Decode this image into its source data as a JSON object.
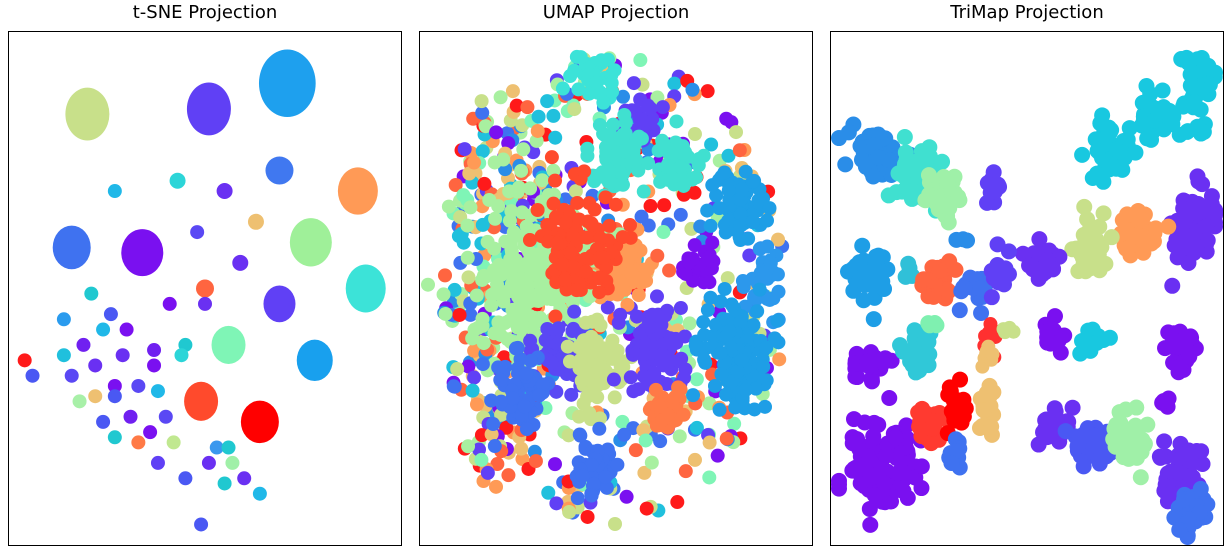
{
  "figure": {
    "background": "#ffffff"
  },
  "chart_data": [
    {
      "type": "scatter",
      "title": "t-SNE Projection",
      "grid": false,
      "axes_visible": false,
      "colormap": "rainbow",
      "points": [
        {
          "x": 0.2,
          "y": 0.16,
          "r": 22,
          "color": "#c8e08a",
          "w": 1.0,
          "h": 1.2
        },
        {
          "x": 0.51,
          "y": 0.15,
          "r": 22,
          "color": "#6040f5",
          "w": 1.0,
          "h": 1.2
        },
        {
          "x": 0.71,
          "y": 0.1,
          "r": 27,
          "color": "#1ea0ee",
          "w": 1.05,
          "h": 1.25
        },
        {
          "x": 0.27,
          "y": 0.31,
          "r": 7,
          "color": "#20b8e8"
        },
        {
          "x": 0.43,
          "y": 0.29,
          "r": 8,
          "color": "#2cd5d8"
        },
        {
          "x": 0.55,
          "y": 0.31,
          "r": 8,
          "color": "#6a30f2"
        },
        {
          "x": 0.69,
          "y": 0.27,
          "r": 14,
          "color": "#4078f0"
        },
        {
          "x": 0.89,
          "y": 0.31,
          "r": 20,
          "color": "#ff9a56",
          "w": 1.0,
          "h": 1.18
        },
        {
          "x": 0.16,
          "y": 0.42,
          "r": 19,
          "color": "#3f72f0",
          "w": 1.0,
          "h": 1.15
        },
        {
          "x": 0.34,
          "y": 0.43,
          "r": 21,
          "color": "#7a10f0",
          "w": 1.0,
          "h": 1.12
        },
        {
          "x": 0.48,
          "y": 0.39,
          "r": 7,
          "color": "#5a48f4"
        },
        {
          "x": 0.63,
          "y": 0.37,
          "r": 8,
          "color": "#eec071"
        },
        {
          "x": 0.77,
          "y": 0.41,
          "r": 21,
          "color": "#9ff099",
          "w": 1.0,
          "h": 1.15
        },
        {
          "x": 0.59,
          "y": 0.45,
          "r": 8,
          "color": "#6a30f2"
        },
        {
          "x": 0.5,
          "y": 0.5,
          "r": 9,
          "color": "#ff6540"
        },
        {
          "x": 0.91,
          "y": 0.5,
          "r": 20,
          "color": "#3ce3d8",
          "w": 1.0,
          "h": 1.2
        },
        {
          "x": 0.69,
          "y": 0.53,
          "r": 16,
          "color": "#6040f5",
          "w": 1.0,
          "h": 1.15
        },
        {
          "x": 0.41,
          "y": 0.53,
          "r": 7,
          "color": "#7a10f0"
        },
        {
          "x": 0.21,
          "y": 0.51,
          "r": 7,
          "color": "#20c8d0"
        },
        {
          "x": 0.14,
          "y": 0.56,
          "r": 7,
          "color": "#2a9bee"
        },
        {
          "x": 0.26,
          "y": 0.55,
          "r": 7,
          "color": "#4a58f3"
        },
        {
          "x": 0.24,
          "y": 0.58,
          "r": 7,
          "color": "#20b8e8"
        },
        {
          "x": 0.3,
          "y": 0.58,
          "r": 7,
          "color": "#7a10f0"
        },
        {
          "x": 0.5,
          "y": 0.53,
          "r": 7,
          "color": "#6a30f2"
        },
        {
          "x": 0.56,
          "y": 0.61,
          "r": 17,
          "color": "#7ff5b6",
          "w": 1.0,
          "h": 1.12
        },
        {
          "x": 0.19,
          "y": 0.61,
          "r": 7,
          "color": "#7020f0"
        },
        {
          "x": 0.14,
          "y": 0.63,
          "r": 7,
          "color": "#20c0dd"
        },
        {
          "x": 0.29,
          "y": 0.63,
          "r": 7,
          "color": "#6a30f2"
        },
        {
          "x": 0.37,
          "y": 0.62,
          "r": 7,
          "color": "#7020f0"
        },
        {
          "x": 0.37,
          "y": 0.65,
          "r": 7,
          "color": "#7a10f0"
        },
        {
          "x": 0.45,
          "y": 0.61,
          "r": 7,
          "color": "#20c8d0"
        },
        {
          "x": 0.44,
          "y": 0.63,
          "r": 7,
          "color": "#2cd5d8"
        },
        {
          "x": 0.04,
          "y": 0.64,
          "r": 7,
          "color": "#ff1a1a"
        },
        {
          "x": 0.22,
          "y": 0.65,
          "r": 7,
          "color": "#6a30f2"
        },
        {
          "x": 0.78,
          "y": 0.64,
          "r": 18,
          "color": "#18a0ee",
          "w": 1.0,
          "h": 1.15
        },
        {
          "x": 0.06,
          "y": 0.67,
          "r": 7,
          "color": "#4a58f3"
        },
        {
          "x": 0.16,
          "y": 0.67,
          "r": 7,
          "color": "#5a48f4"
        },
        {
          "x": 0.27,
          "y": 0.69,
          "r": 7,
          "color": "#7a10f0"
        },
        {
          "x": 0.33,
          "y": 0.69,
          "r": 7,
          "color": "#5a48f4"
        },
        {
          "x": 0.38,
          "y": 0.7,
          "r": 7,
          "color": "#20b8e8"
        },
        {
          "x": 0.18,
          "y": 0.72,
          "r": 7,
          "color": "#a8f0a8"
        },
        {
          "x": 0.22,
          "y": 0.71,
          "r": 7,
          "color": "#eec071"
        },
        {
          "x": 0.27,
          "y": 0.71,
          "r": 7,
          "color": "#4a58f3"
        },
        {
          "x": 0.49,
          "y": 0.72,
          "r": 17,
          "color": "#ff4a2c",
          "w": 1.0,
          "h": 1.15
        },
        {
          "x": 0.64,
          "y": 0.76,
          "r": 19,
          "color": "#ff0000",
          "w": 1.0,
          "h": 1.12
        },
        {
          "x": 0.24,
          "y": 0.76,
          "r": 7,
          "color": "#4a58f3"
        },
        {
          "x": 0.31,
          "y": 0.75,
          "r": 7,
          "color": "#7020f0"
        },
        {
          "x": 0.4,
          "y": 0.75,
          "r": 7,
          "color": "#5a48f4"
        },
        {
          "x": 0.27,
          "y": 0.79,
          "r": 7,
          "color": "#20c8d0"
        },
        {
          "x": 0.33,
          "y": 0.8,
          "r": 7,
          "color": "#ff7a46"
        },
        {
          "x": 0.36,
          "y": 0.78,
          "r": 7,
          "color": "#7a10f0"
        },
        {
          "x": 0.42,
          "y": 0.8,
          "r": 7,
          "color": "#c0e890"
        },
        {
          "x": 0.53,
          "y": 0.81,
          "r": 7,
          "color": "#3a98ee"
        },
        {
          "x": 0.56,
          "y": 0.81,
          "r": 7,
          "color": "#20c8d0"
        },
        {
          "x": 0.38,
          "y": 0.84,
          "r": 7,
          "color": "#6040f5"
        },
        {
          "x": 0.51,
          "y": 0.84,
          "r": 7,
          "color": "#6a30f2"
        },
        {
          "x": 0.57,
          "y": 0.84,
          "r": 7,
          "color": "#a0f0a8"
        },
        {
          "x": 0.45,
          "y": 0.87,
          "r": 7,
          "color": "#4a58f3"
        },
        {
          "x": 0.6,
          "y": 0.87,
          "r": 7,
          "color": "#6a30f2"
        },
        {
          "x": 0.55,
          "y": 0.88,
          "r": 7,
          "color": "#20c8d0"
        },
        {
          "x": 0.64,
          "y": 0.9,
          "r": 7,
          "color": "#20b8e8"
        },
        {
          "x": 0.49,
          "y": 0.96,
          "r": 7,
          "color": "#4a58f3"
        }
      ]
    },
    {
      "type": "scatter",
      "title": "UMAP Projection",
      "grid": false,
      "axes_visible": false,
      "colormap": "rainbow",
      "clusters": [
        {
          "cx": 0.45,
          "cy": 0.09,
          "rx": 0.06,
          "ry": 0.04,
          "n": 40,
          "r": 7,
          "color": "#3ce3d8"
        },
        {
          "cx": 0.56,
          "cy": 0.18,
          "rx": 0.05,
          "ry": 0.04,
          "n": 30,
          "r": 7,
          "color": "#6040f5"
        },
        {
          "cx": 0.5,
          "cy": 0.24,
          "rx": 0.07,
          "ry": 0.07,
          "n": 70,
          "r": 7,
          "color": "#40e0d0"
        },
        {
          "cx": 0.66,
          "cy": 0.26,
          "rx": 0.06,
          "ry": 0.06,
          "n": 60,
          "r": 7,
          "color": "#40e0d0"
        },
        {
          "cx": 0.82,
          "cy": 0.34,
          "rx": 0.06,
          "ry": 0.07,
          "n": 70,
          "r": 7,
          "color": "#1e9ee6"
        },
        {
          "cx": 0.51,
          "cy": 0.45,
          "rx": 0.06,
          "ry": 0.07,
          "n": 70,
          "r": 7,
          "color": "#ff9a56"
        },
        {
          "cx": 0.71,
          "cy": 0.46,
          "rx": 0.04,
          "ry": 0.04,
          "n": 25,
          "r": 7,
          "color": "#7a10f0"
        },
        {
          "cx": 0.88,
          "cy": 0.48,
          "rx": 0.05,
          "ry": 0.08,
          "n": 40,
          "r": 7,
          "color": "#2c98ec"
        },
        {
          "cx": 0.3,
          "cy": 0.48,
          "rx": 0.16,
          "ry": 0.16,
          "n": 260,
          "r": 7,
          "color": "#a8f0a0"
        },
        {
          "cx": 0.4,
          "cy": 0.42,
          "rx": 0.1,
          "ry": 0.12,
          "n": 120,
          "r": 7,
          "color": "#ff4a2c"
        },
        {
          "cx": 0.36,
          "cy": 0.62,
          "rx": 0.06,
          "ry": 0.06,
          "n": 60,
          "r": 7,
          "color": "#5a48f4"
        },
        {
          "cx": 0.45,
          "cy": 0.65,
          "rx": 0.06,
          "ry": 0.08,
          "n": 80,
          "r": 7,
          "color": "#c8e08a"
        },
        {
          "cx": 0.6,
          "cy": 0.62,
          "rx": 0.07,
          "ry": 0.09,
          "n": 90,
          "r": 7,
          "color": "#6040f5"
        },
        {
          "cx": 0.8,
          "cy": 0.62,
          "rx": 0.08,
          "ry": 0.11,
          "n": 140,
          "r": 7,
          "color": "#1e9ee6"
        },
        {
          "cx": 0.26,
          "cy": 0.7,
          "rx": 0.06,
          "ry": 0.07,
          "n": 70,
          "r": 7,
          "color": "#3f72f0"
        },
        {
          "cx": 0.63,
          "cy": 0.74,
          "rx": 0.05,
          "ry": 0.05,
          "n": 50,
          "r": 7,
          "color": "#ff7a46"
        },
        {
          "cx": 0.45,
          "cy": 0.85,
          "rx": 0.05,
          "ry": 0.06,
          "n": 55,
          "r": 7,
          "color": "#3f72f0"
        },
        {
          "cx": 0.2,
          "cy": 0.5,
          "rx": 0.14,
          "ry": 0.4,
          "n": 200,
          "r": 7,
          "color": "mixed"
        },
        {
          "cx": 0.5,
          "cy": 0.5,
          "rx": 0.44,
          "ry": 0.46,
          "n": 420,
          "r": 7,
          "color": "mixed"
        }
      ]
    },
    {
      "type": "scatter",
      "title": "TriMap Projection",
      "grid": false,
      "axes_visible": false,
      "colormap": "rainbow",
      "clusters": [
        {
          "cx": 0.94,
          "cy": 0.1,
          "rx": 0.05,
          "ry": 0.06,
          "n": 35,
          "r": 8,
          "color": "#18c8e0"
        },
        {
          "cx": 0.83,
          "cy": 0.17,
          "rx": 0.05,
          "ry": 0.06,
          "n": 40,
          "r": 8,
          "color": "#18c8e0"
        },
        {
          "cx": 0.71,
          "cy": 0.23,
          "rx": 0.06,
          "ry": 0.05,
          "n": 40,
          "r": 8,
          "color": "#18c8e0"
        },
        {
          "cx": 0.93,
          "cy": 0.19,
          "rx": 0.03,
          "ry": 0.02,
          "n": 6,
          "r": 8,
          "color": "#18c8e0"
        },
        {
          "cx": 0.11,
          "cy": 0.24,
          "rx": 0.07,
          "ry": 0.05,
          "n": 60,
          "r": 8,
          "color": "#2a8de8"
        },
        {
          "cx": 0.22,
          "cy": 0.28,
          "rx": 0.06,
          "ry": 0.05,
          "n": 45,
          "r": 8,
          "color": "#40e0d0"
        },
        {
          "cx": 0.29,
          "cy": 0.32,
          "rx": 0.04,
          "ry": 0.05,
          "n": 35,
          "r": 8,
          "color": "#9ff0a8"
        },
        {
          "cx": 0.41,
          "cy": 0.31,
          "rx": 0.02,
          "ry": 0.04,
          "n": 14,
          "r": 8,
          "color": "#6040f5"
        },
        {
          "cx": 0.93,
          "cy": 0.37,
          "rx": 0.06,
          "ry": 0.07,
          "n": 60,
          "r": 8,
          "color": "#6a30f2"
        },
        {
          "cx": 0.79,
          "cy": 0.39,
          "rx": 0.05,
          "ry": 0.05,
          "n": 40,
          "r": 8,
          "color": "#ff9a56"
        },
        {
          "cx": 0.65,
          "cy": 0.43,
          "rx": 0.04,
          "ry": 0.06,
          "n": 40,
          "r": 8,
          "color": "#c8e08a"
        },
        {
          "cx": 0.54,
          "cy": 0.45,
          "rx": 0.05,
          "ry": 0.04,
          "n": 30,
          "r": 8,
          "color": "#6a30f2"
        },
        {
          "cx": 0.1,
          "cy": 0.47,
          "rx": 0.05,
          "ry": 0.05,
          "n": 45,
          "r": 8,
          "color": "#1e9ee6"
        },
        {
          "cx": 0.19,
          "cy": 0.47,
          "rx": 0.02,
          "ry": 0.02,
          "n": 5,
          "r": 8,
          "color": "#30c0d8"
        },
        {
          "cx": 0.27,
          "cy": 0.48,
          "rx": 0.04,
          "ry": 0.04,
          "n": 35,
          "r": 8,
          "color": "#ff6540"
        },
        {
          "cx": 0.37,
          "cy": 0.5,
          "rx": 0.04,
          "ry": 0.04,
          "n": 20,
          "r": 8,
          "color": "#3f72f0"
        },
        {
          "cx": 0.43,
          "cy": 0.47,
          "rx": 0.02,
          "ry": 0.05,
          "n": 12,
          "r": 8,
          "color": "#6040f5"
        },
        {
          "cx": 0.33,
          "cy": 0.41,
          "rx": 0.02,
          "ry": 0.01,
          "n": 3,
          "r": 8,
          "color": "#2a8de8"
        },
        {
          "cx": 0.1,
          "cy": 0.65,
          "rx": 0.05,
          "ry": 0.04,
          "n": 30,
          "r": 8,
          "color": "#7a10f0"
        },
        {
          "cx": 0.22,
          "cy": 0.62,
          "rx": 0.04,
          "ry": 0.04,
          "n": 25,
          "r": 8,
          "color": "#30c8d8"
        },
        {
          "cx": 0.26,
          "cy": 0.57,
          "rx": 0.02,
          "ry": 0.01,
          "n": 4,
          "r": 8,
          "color": "#7ff0b0"
        },
        {
          "cx": 0.41,
          "cy": 0.6,
          "rx": 0.02,
          "ry": 0.03,
          "n": 8,
          "r": 7,
          "color": "#ff3030"
        },
        {
          "cx": 0.4,
          "cy": 0.63,
          "rx": 0.02,
          "ry": 0.03,
          "n": 8,
          "r": 7,
          "color": "#eec071"
        },
        {
          "cx": 0.45,
          "cy": 0.58,
          "rx": 0.02,
          "ry": 0.02,
          "n": 4,
          "r": 7,
          "color": "#c8e08a"
        },
        {
          "cx": 0.57,
          "cy": 0.6,
          "rx": 0.03,
          "ry": 0.03,
          "n": 15,
          "r": 8,
          "color": "#7a10f0"
        },
        {
          "cx": 0.66,
          "cy": 0.6,
          "rx": 0.04,
          "ry": 0.03,
          "n": 18,
          "r": 8,
          "color": "#18c8e0"
        },
        {
          "cx": 0.9,
          "cy": 0.62,
          "rx": 0.05,
          "ry": 0.04,
          "n": 30,
          "r": 8,
          "color": "#7a10f0"
        },
        {
          "cx": 0.4,
          "cy": 0.73,
          "rx": 0.02,
          "ry": 0.06,
          "n": 25,
          "r": 8,
          "color": "#eec071"
        },
        {
          "cx": 0.12,
          "cy": 0.85,
          "rx": 0.09,
          "ry": 0.09,
          "n": 110,
          "r": 8,
          "color": "#7a10f0"
        },
        {
          "cx": 0.26,
          "cy": 0.76,
          "rx": 0.04,
          "ry": 0.04,
          "n": 30,
          "r": 8,
          "color": "#ff3a30"
        },
        {
          "cx": 0.32,
          "cy": 0.74,
          "rx": 0.03,
          "ry": 0.04,
          "n": 25,
          "r": 8,
          "color": "#ff0000"
        },
        {
          "cx": 0.32,
          "cy": 0.82,
          "rx": 0.02,
          "ry": 0.03,
          "n": 12,
          "r": 8,
          "color": "#3f72f0"
        },
        {
          "cx": 0.57,
          "cy": 0.76,
          "rx": 0.04,
          "ry": 0.04,
          "n": 25,
          "r": 8,
          "color": "#6a30f2"
        },
        {
          "cx": 0.67,
          "cy": 0.8,
          "rx": 0.05,
          "ry": 0.05,
          "n": 35,
          "r": 8,
          "color": "#4a58f3"
        },
        {
          "cx": 0.77,
          "cy": 0.8,
          "rx": 0.05,
          "ry": 0.05,
          "n": 40,
          "r": 8,
          "color": "#a0f0a8"
        },
        {
          "cx": 0.9,
          "cy": 0.86,
          "rx": 0.06,
          "ry": 0.07,
          "n": 60,
          "r": 8,
          "color": "#6a30f2"
        },
        {
          "cx": 0.92,
          "cy": 0.93,
          "rx": 0.05,
          "ry": 0.04,
          "n": 30,
          "r": 8,
          "color": "#3f72f0"
        },
        {
          "cx": 0.85,
          "cy": 0.72,
          "rx": 0.02,
          "ry": 0.03,
          "n": 6,
          "r": 8,
          "color": "#7a10f0"
        }
      ]
    }
  ]
}
